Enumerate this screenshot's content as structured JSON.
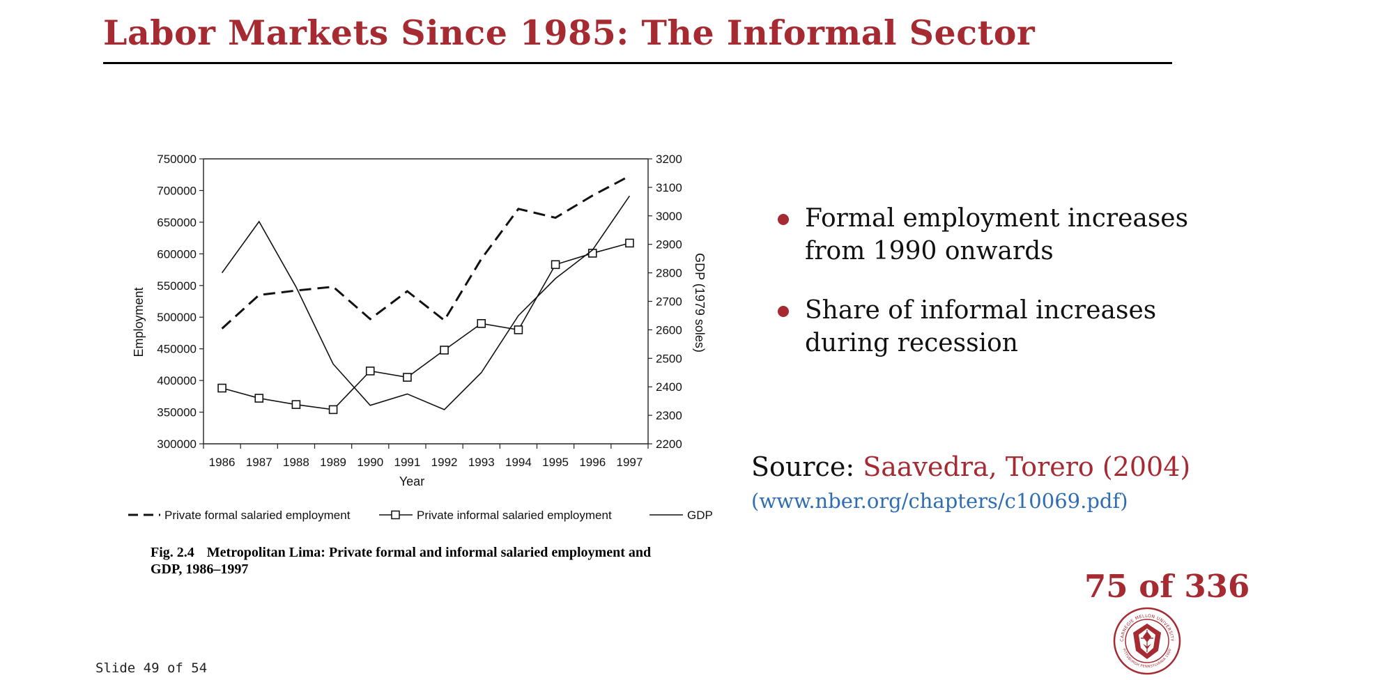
{
  "slide": {
    "title": "Labor Markets Since 1985: The Informal Sector",
    "slide_number": "Slide 49 of 54",
    "page_counter": "75 of 336",
    "accent_color": "#a52a32",
    "link_color": "#2e6db3"
  },
  "bullets": [
    {
      "text": "Formal employment increases from 1990 onwards",
      "icon": "bullet-dot"
    },
    {
      "text": "Share of informal increases during recession",
      "icon": "bullet-dot"
    }
  ],
  "source": {
    "label": "Source:",
    "citation": "Saavedra, Torero (2004)",
    "url": "(www.nber.org/chapters/c10069.pdf)"
  },
  "caption": {
    "fig_num": "Fig. 2.4",
    "text": "Metropolitan Lima: Private formal and informal salaried employment and GDP, 1986–1997"
  },
  "seal": {
    "icon": "university-seal-icon",
    "text": "CARNEGIE MELLON UNIVERSITY · PITTSBURGH PENNSYLVANIA 1900"
  },
  "chart_data": {
    "type": "line",
    "title": "",
    "xlabel": "Year",
    "ylabel": "Employment",
    "y2label": "GDP (1979 soles)",
    "categories": [
      "1986",
      "1987",
      "1988",
      "1989",
      "1990",
      "1991",
      "1992",
      "1993",
      "1994",
      "1995",
      "1996",
      "1997"
    ],
    "ylim": [
      300000,
      750000
    ],
    "y_ticks": [
      300000,
      350000,
      400000,
      450000,
      500000,
      550000,
      600000,
      650000,
      700000,
      750000
    ],
    "y2lim": [
      2200,
      3200
    ],
    "y2_ticks": [
      2200,
      2300,
      2400,
      2500,
      2600,
      2700,
      2800,
      2900,
      3000,
      3100,
      3200
    ],
    "grid": false,
    "legend_position": "bottom",
    "series": [
      {
        "name": "Private formal salaried employment",
        "axis": "left",
        "style": "dashed",
        "values": [
          482000,
          535000,
          542000,
          548000,
          497000,
          541000,
          495000,
          592000,
          671000,
          657000,
          692000,
          723000
        ]
      },
      {
        "name": "Private informal salaried employment",
        "axis": "left",
        "style": "square-markers",
        "values": [
          388000,
          372000,
          362000,
          354000,
          415000,
          405000,
          448000,
          490000,
          480000,
          583000,
          601000,
          617000
        ]
      },
      {
        "name": "GDP",
        "axis": "right",
        "style": "solid",
        "values": [
          2800,
          2980,
          2750,
          2480,
          2335,
          2375,
          2320,
          2450,
          2650,
          2780,
          2880,
          3070
        ]
      }
    ]
  }
}
